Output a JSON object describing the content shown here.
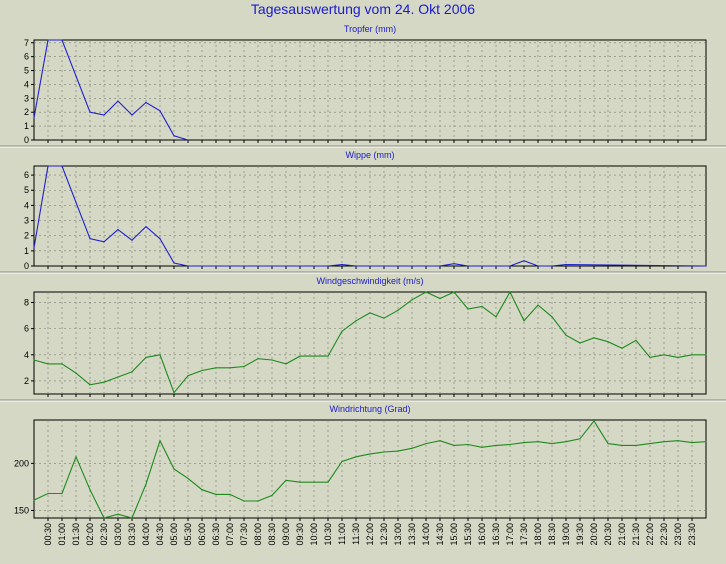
{
  "title": "Tagesauswertung vom 24. Okt 2006",
  "chart_data": [
    {
      "type": "line",
      "title": "Tropfer (mm)",
      "ylim": [
        0,
        7.2
      ],
      "yticks": [
        0,
        1,
        2,
        3,
        4,
        5,
        6,
        7
      ],
      "color": "#1f1fd0",
      "x": [
        0,
        0.5,
        1,
        1.5,
        2,
        2.5,
        3,
        3.5,
        4,
        4.5,
        5,
        5.5
      ],
      "values": [
        1.6,
        7.2,
        7.2,
        4.6,
        2.0,
        1.8,
        2.8,
        1.8,
        2.7,
        2.1,
        0.3,
        0.0
      ],
      "grid": true
    },
    {
      "type": "line",
      "title": "Wippe (mm)",
      "ylim": [
        0,
        6.6
      ],
      "yticks": [
        0,
        1,
        2,
        3,
        4,
        5,
        6
      ],
      "color": "#1f1fd0",
      "x": [
        0,
        0.5,
        1,
        1.5,
        2,
        2.5,
        3,
        3.5,
        4,
        4.5,
        5,
        5.5,
        10.5,
        11,
        11.5,
        14.5,
        15,
        15.5,
        17,
        17.5,
        18,
        18.5,
        19,
        24
      ],
      "values": [
        1.2,
        6.6,
        6.6,
        4.2,
        1.8,
        1.6,
        2.4,
        1.7,
        2.6,
        1.8,
        0.2,
        0.0,
        0.0,
        0.1,
        0.0,
        0.0,
        0.15,
        0.0,
        0.0,
        0.35,
        0.0,
        0.0,
        0.1,
        0.0
      ],
      "grid": true
    },
    {
      "type": "line",
      "title": "Windgeschwindigkeit (m/s)",
      "ylim": [
        1.0,
        8.8
      ],
      "yticks": [
        2,
        4,
        6,
        8
      ],
      "color": "#1e8a1e",
      "x": [
        0,
        0.5,
        1,
        1.5,
        2,
        2.5,
        3,
        3.5,
        4,
        4.5,
        5,
        5.5,
        6,
        6.5,
        7,
        7.5,
        8,
        8.5,
        9,
        9.5,
        10,
        10.5,
        11,
        11.5,
        12,
        12.5,
        13,
        13.5,
        14,
        14.5,
        15,
        15.5,
        16,
        16.5,
        17,
        17.5,
        18,
        18.5,
        19,
        19.5,
        20,
        20.5,
        21,
        21.5,
        22,
        22.5,
        23,
        23.5,
        24
      ],
      "values": [
        3.6,
        3.3,
        3.3,
        2.6,
        1.7,
        1.9,
        2.3,
        2.7,
        3.8,
        4.0,
        1.1,
        2.4,
        2.8,
        3.0,
        3.0,
        3.1,
        3.7,
        3.6,
        3.3,
        3.9,
        3.9,
        3.9,
        5.8,
        6.6,
        7.2,
        6.8,
        7.4,
        8.2,
        8.8,
        8.3,
        8.8,
        7.5,
        7.7,
        6.9,
        8.8,
        6.6,
        7.8,
        6.9,
        5.5,
        4.9,
        5.3,
        5.0,
        4.5,
        5.1,
        3.8,
        4.0,
        3.8,
        4.0,
        4.0
      ],
      "grid": true
    },
    {
      "type": "line",
      "title": "Windrichtung (Grad)",
      "ylim": [
        142,
        246
      ],
      "yticks": [
        150,
        200
      ],
      "color": "#1e8a1e",
      "x": [
        0,
        0.5,
        1,
        1.5,
        2,
        2.5,
        3,
        3.5,
        4,
        4.5,
        5,
        5.5,
        6,
        6.5,
        7,
        7.5,
        8,
        8.5,
        9,
        9.5,
        10,
        10.5,
        11,
        11.5,
        12,
        12.5,
        13,
        13.5,
        14,
        14.5,
        15,
        15.5,
        16,
        16.5,
        17,
        17.5,
        18,
        18.5,
        19,
        19.5,
        20,
        20.5,
        21,
        21.5,
        22,
        22.5,
        23,
        23.5,
        24
      ],
      "values": [
        161,
        168,
        168,
        207,
        172,
        142,
        146,
        142,
        178,
        224,
        194,
        184,
        172,
        167,
        167,
        160,
        160,
        166,
        182,
        180,
        180,
        180,
        202,
        207,
        210,
        212,
        213,
        216,
        221,
        224,
        219,
        220,
        217,
        219,
        220,
        222,
        223,
        221,
        223,
        226,
        245,
        221,
        219,
        219,
        221,
        223,
        224,
        222,
        223
      ],
      "grid": true
    }
  ],
  "x_tick_labels": [
    "00:30",
    "01:00",
    "01:30",
    "02:00",
    "02:30",
    "03:00",
    "03:30",
    "04:00",
    "04:30",
    "05:00",
    "05:30",
    "06:00",
    "06:30",
    "07:00",
    "07:30",
    "08:00",
    "08:30",
    "09:00",
    "09:30",
    "10:00",
    "10:30",
    "11:00",
    "11:30",
    "12:00",
    "12:30",
    "13:00",
    "13:30",
    "14:00",
    "14:30",
    "15:00",
    "15:30",
    "16:00",
    "16:30",
    "17:00",
    "17:30",
    "18:00",
    "18:30",
    "19:00",
    "19:30",
    "20:00",
    "20:30",
    "21:00",
    "21:30",
    "22:00",
    "22:30",
    "23:00",
    "23:30"
  ]
}
